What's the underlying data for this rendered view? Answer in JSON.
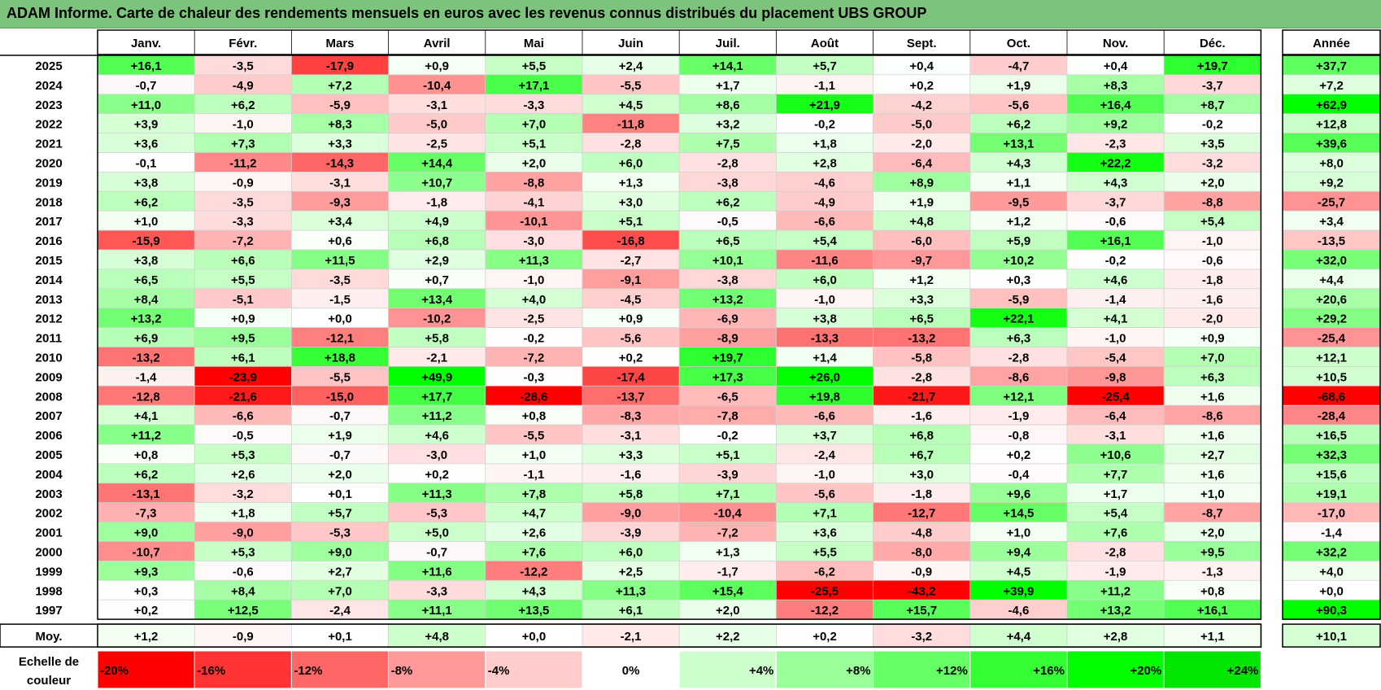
{
  "title": "ADAM Informe. Carte de chaleur des rendements mensuels en euros avec les revenus connus distribués du placement UBS GROUP",
  "chart_data": {
    "type": "heatmap",
    "title": "ADAM Informe. Carte de chaleur des rendements mensuels en euros avec les revenus connus distribués du placement UBS GROUP",
    "columns": [
      "Janv.",
      "Févr.",
      "Mars",
      "Avril",
      "Mai",
      "Juin",
      "Juil.",
      "Août",
      "Sept.",
      "Oct.",
      "Nov.",
      "Déc."
    ],
    "year_header": "Année",
    "rows": [
      {
        "year": "2025",
        "values": [
          16.1,
          -3.5,
          -17.9,
          0.9,
          5.5,
          2.4,
          14.1,
          5.7,
          0.4,
          -4.7,
          0.4,
          19.7
        ],
        "annual": 37.7
      },
      {
        "year": "2024",
        "values": [
          -0.7,
          -4.9,
          7.2,
          -10.4,
          17.1,
          -5.5,
          1.7,
          -1.1,
          0.2,
          1.9,
          8.3,
          -3.7
        ],
        "annual": 7.2
      },
      {
        "year": "2023",
        "values": [
          11.0,
          6.2,
          -5.9,
          -3.1,
          -3.3,
          4.5,
          8.6,
          21.9,
          -4.2,
          -5.6,
          16.4,
          8.7
        ],
        "annual": 62.9
      },
      {
        "year": "2022",
        "values": [
          3.9,
          -1.0,
          8.3,
          -5.0,
          7.0,
          -11.8,
          3.2,
          -0.2,
          -5.0,
          6.2,
          9.2,
          -0.2
        ],
        "annual": 12.8
      },
      {
        "year": "2021",
        "values": [
          3.6,
          7.3,
          3.3,
          -2.5,
          5.1,
          -2.8,
          7.5,
          1.8,
          -2.0,
          13.1,
          -2.3,
          3.5
        ],
        "annual": 39.6
      },
      {
        "year": "2020",
        "values": [
          -0.1,
          -11.2,
          -14.3,
          14.4,
          2.0,
          6.0,
          -2.8,
          2.8,
          -6.4,
          4.3,
          22.2,
          -3.2
        ],
        "annual": 8.0
      },
      {
        "year": "2019",
        "values": [
          3.8,
          -0.9,
          -3.1,
          10.7,
          -8.8,
          1.3,
          -3.8,
          -4.6,
          8.9,
          1.1,
          4.3,
          2.0
        ],
        "annual": 9.2
      },
      {
        "year": "2018",
        "values": [
          6.2,
          -3.5,
          -9.3,
          -1.8,
          -4.1,
          3.0,
          6.2,
          -4.9,
          1.9,
          -9.5,
          -3.7,
          -8.8
        ],
        "annual": -25.7
      },
      {
        "year": "2017",
        "values": [
          1.0,
          -3.3,
          3.4,
          4.9,
          -10.1,
          5.1,
          -0.5,
          -6.6,
          4.8,
          1.2,
          -0.6,
          5.4
        ],
        "annual": 3.4
      },
      {
        "year": "2016",
        "values": [
          -15.9,
          -7.2,
          0.6,
          6.8,
          -3.0,
          -16.8,
          6.5,
          5.4,
          -6.0,
          5.9,
          16.1,
          -1.0
        ],
        "annual": -13.5
      },
      {
        "year": "2015",
        "values": [
          3.8,
          6.6,
          11.5,
          2.9,
          11.3,
          -2.7,
          10.1,
          -11.6,
          -9.7,
          10.2,
          -0.2,
          -0.6
        ],
        "annual": 32.0
      },
      {
        "year": "2014",
        "values": [
          6.5,
          5.5,
          -3.5,
          0.7,
          -1.0,
          -9.1,
          -3.8,
          6.0,
          1.2,
          0.3,
          4.6,
          -1.8
        ],
        "annual": 4.4
      },
      {
        "year": "2013",
        "values": [
          8.4,
          -5.1,
          -1.5,
          13.4,
          4.0,
          -4.5,
          13.2,
          -1.0,
          3.3,
          -5.9,
          -1.4,
          -1.6
        ],
        "annual": 20.6
      },
      {
        "year": "2012",
        "values": [
          13.2,
          0.9,
          0.0,
          -10.2,
          -2.5,
          0.9,
          -6.9,
          3.8,
          6.5,
          22.1,
          4.1,
          -2.0
        ],
        "annual": 29.2
      },
      {
        "year": "2011",
        "values": [
          6.9,
          9.5,
          -12.1,
          5.8,
          -0.2,
          -5.6,
          -8.9,
          -13.3,
          -13.2,
          6.3,
          -1.0,
          0.9
        ],
        "annual": -25.4
      },
      {
        "year": "2010",
        "values": [
          -13.2,
          6.1,
          18.8,
          -2.1,
          -7.2,
          0.2,
          19.7,
          1.4,
          -5.8,
          -2.8,
          -5.4,
          7.0
        ],
        "annual": 12.1
      },
      {
        "year": "2009",
        "values": [
          -1.4,
          -23.9,
          -5.5,
          49.9,
          -0.3,
          -17.4,
          17.3,
          26.0,
          -2.8,
          -8.6,
          -9.8,
          6.3
        ],
        "annual": 10.5
      },
      {
        "year": "2008",
        "values": [
          -12.8,
          -21.6,
          -15.0,
          17.7,
          -28.6,
          -13.7,
          -6.5,
          19.8,
          -21.7,
          12.1,
          -25.4,
          1.6
        ],
        "annual": -68.6
      },
      {
        "year": "2007",
        "values": [
          4.1,
          -6.6,
          -0.7,
          11.2,
          0.8,
          -8.3,
          -7.8,
          -6.6,
          -1.6,
          -1.9,
          -6.4,
          -8.6
        ],
        "annual": -28.4
      },
      {
        "year": "2006",
        "values": [
          11.2,
          -0.5,
          1.9,
          4.6,
          -5.5,
          -3.1,
          -0.2,
          3.7,
          6.8,
          -0.8,
          -3.1,
          1.6
        ],
        "annual": 16.5
      },
      {
        "year": "2005",
        "values": [
          0.8,
          5.3,
          -0.7,
          -3.0,
          1.0,
          3.3,
          5.1,
          -2.4,
          6.7,
          0.2,
          10.6,
          2.7
        ],
        "annual": 32.3
      },
      {
        "year": "2004",
        "values": [
          6.2,
          2.6,
          2.0,
          0.2,
          -1.1,
          -1.6,
          -3.9,
          -1.0,
          3.0,
          -0.4,
          7.7,
          1.6
        ],
        "annual": 15.6
      },
      {
        "year": "2003",
        "values": [
          -13.1,
          -3.2,
          0.1,
          11.3,
          7.8,
          5.8,
          7.1,
          -5.6,
          -1.8,
          9.6,
          1.7,
          1.0
        ],
        "annual": 19.1
      },
      {
        "year": "2002",
        "values": [
          -7.3,
          1.8,
          5.7,
          -5.3,
          4.7,
          -9.0,
          -10.4,
          7.1,
          -12.7,
          14.5,
          5.4,
          -8.7
        ],
        "annual": -17.0
      },
      {
        "year": "2001",
        "values": [
          9.0,
          -9.0,
          -5.3,
          5.0,
          2.6,
          -3.9,
          -7.2,
          3.6,
          -4.8,
          1.0,
          7.6,
          2.0
        ],
        "annual": -1.4
      },
      {
        "year": "2000",
        "values": [
          -10.7,
          5.3,
          9.0,
          -0.7,
          7.6,
          6.0,
          1.3,
          5.5,
          -8.0,
          9.4,
          -2.8,
          9.5
        ],
        "annual": 32.2
      },
      {
        "year": "1999",
        "values": [
          9.3,
          -0.6,
          2.7,
          11.6,
          -12.2,
          2.5,
          -1.7,
          -6.2,
          -0.9,
          4.5,
          -1.9,
          -1.3
        ],
        "annual": 4.0
      },
      {
        "year": "1998",
        "values": [
          0.3,
          8.4,
          7.0,
          -3.3,
          4.3,
          11.3,
          15.4,
          -25.5,
          -43.2,
          39.9,
          11.2,
          0.8
        ],
        "annual": 0.0
      },
      {
        "year": "1997",
        "values": [
          0.2,
          12.5,
          -2.4,
          11.1,
          13.5,
          6.1,
          2.0,
          -12.2,
          15.7,
          -4.6,
          13.2,
          16.1
        ],
        "annual": 90.3
      }
    ],
    "average": {
      "label": "Moy.",
      "values": [
        1.2,
        -0.9,
        0.1,
        4.8,
        0.0,
        -2.1,
        2.2,
        0.2,
        -3.2,
        4.4,
        2.8,
        1.1
      ],
      "annual": 10.1
    },
    "scale": {
      "label_line1": "Echelle de",
      "label_line2": "couleur",
      "stops": [
        {
          "label": "-20%",
          "color": "#ff0000"
        },
        {
          "label": "-16%",
          "color": "#ff3333"
        },
        {
          "label": "-12%",
          "color": "#ff6666"
        },
        {
          "label": "-8%",
          "color": "#ff9999"
        },
        {
          "label": "-4%",
          "color": "#ffcccc"
        },
        {
          "label": "0%",
          "color": "#ffffff"
        },
        {
          "label": "+4%",
          "color": "#ccffcc"
        },
        {
          "label": "+8%",
          "color": "#99ff99"
        },
        {
          "label": "+12%",
          "color": "#66ff66"
        },
        {
          "label": "+16%",
          "color": "#33ff33"
        },
        {
          "label": "+20%",
          "color": "#00ff00"
        },
        {
          "label": "+24%",
          "color": "#00e600"
        }
      ]
    },
    "colors": {
      "title_bar": "#7cc47b",
      "negative_max": "#ff0000",
      "positive_max": "#00ff00",
      "neutral": "#ffffff"
    }
  }
}
